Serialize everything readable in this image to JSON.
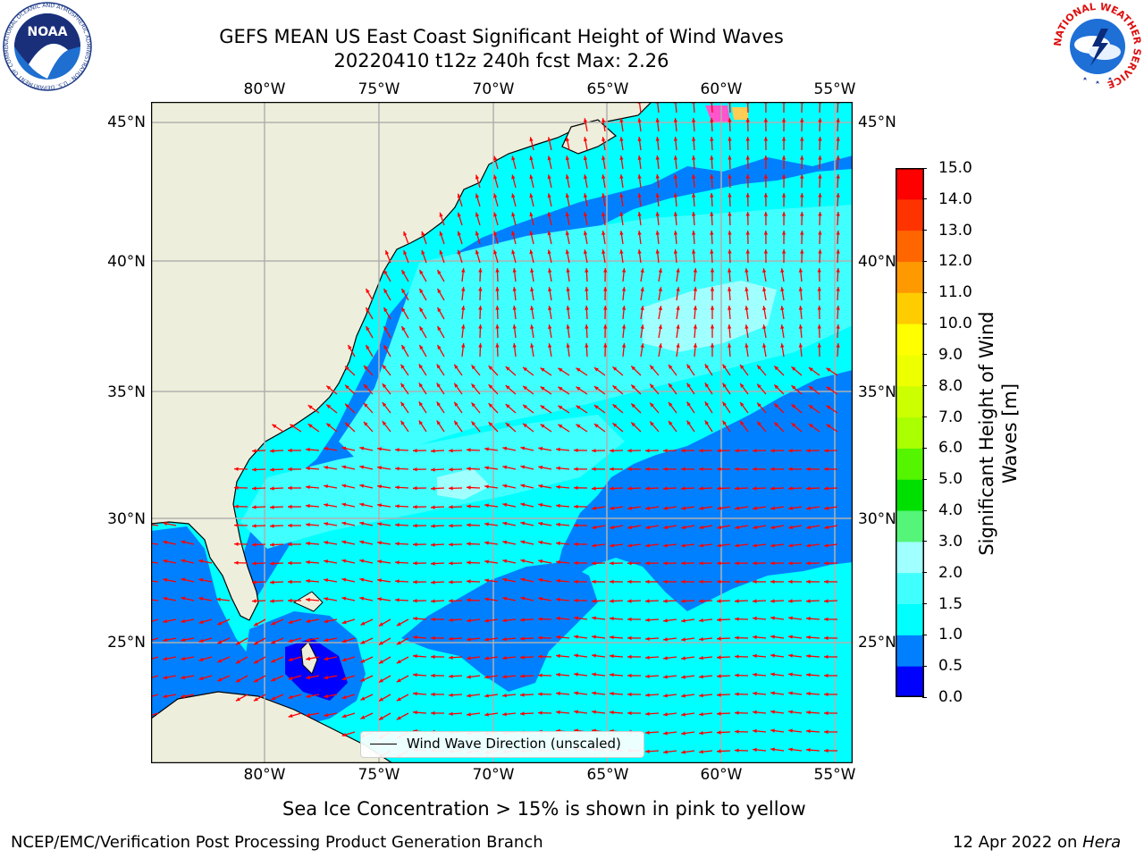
{
  "header": {
    "title_line1": "GEFS MEAN US East Coast Significant Height of Wind Waves",
    "title_line2": "20220410 t12z 240h fcst   Max: 2.26"
  },
  "logos": {
    "left": {
      "text": "NOAA",
      "ring_text": "NATIONAL OCEANIC AND ATMOSPHERIC ADMINISTRATION · U.S. DEPARTMENT OF COMMERCE"
    },
    "right": {
      "ring_text": "NATIONAL WEATHER SERVICE"
    }
  },
  "map": {
    "lon_labels": [
      "80°W",
      "75°W",
      "70°W",
      "65°W",
      "60°W",
      "55°W"
    ],
    "lat_labels": [
      "45°N",
      "40°N",
      "35°N",
      "30°N",
      "25°N"
    ],
    "legend": {
      "label": "Wind Wave Direction (unscaled)"
    },
    "colors": {
      "land": "#eeeedc",
      "arrow": "#ff0000",
      "grid": "#b0b0b0",
      "c0_05": "#0000ff",
      "c05_1": "#0080ff",
      "c1_15": "#00ffff",
      "c15_2": "#40ffff",
      "c2_3": "#a0ffff"
    }
  },
  "colorbar": {
    "label": "Significant Height of Wind Waves [m]",
    "ticks": [
      "0.0",
      "0.5",
      "1.0",
      "1.5",
      "2.0",
      "3.0",
      "4.0",
      "5.0",
      "6.0",
      "7.0",
      "8.0",
      "9.0",
      "10.0",
      "11.0",
      "12.0",
      "13.0",
      "14.0",
      "15.0"
    ],
    "colors": [
      "#0000ff",
      "#0080ff",
      "#00ffff",
      "#40ffff",
      "#a0ffff",
      "#55f57a",
      "#00e000",
      "#55f500",
      "#aaff00",
      "#ccff00",
      "#eeff00",
      "#ffff00",
      "#ffcc00",
      "#ff9900",
      "#ff6600",
      "#ff3300",
      "#ff0000"
    ]
  },
  "footer": {
    "ice_note": "Sea Ice Concentration > 15% is shown in pink to yellow",
    "branch": "NCEP/EMC/Verification Post Processing Product Generation Branch",
    "date": "12 Apr 2022 on ",
    "machine": "Hera"
  }
}
